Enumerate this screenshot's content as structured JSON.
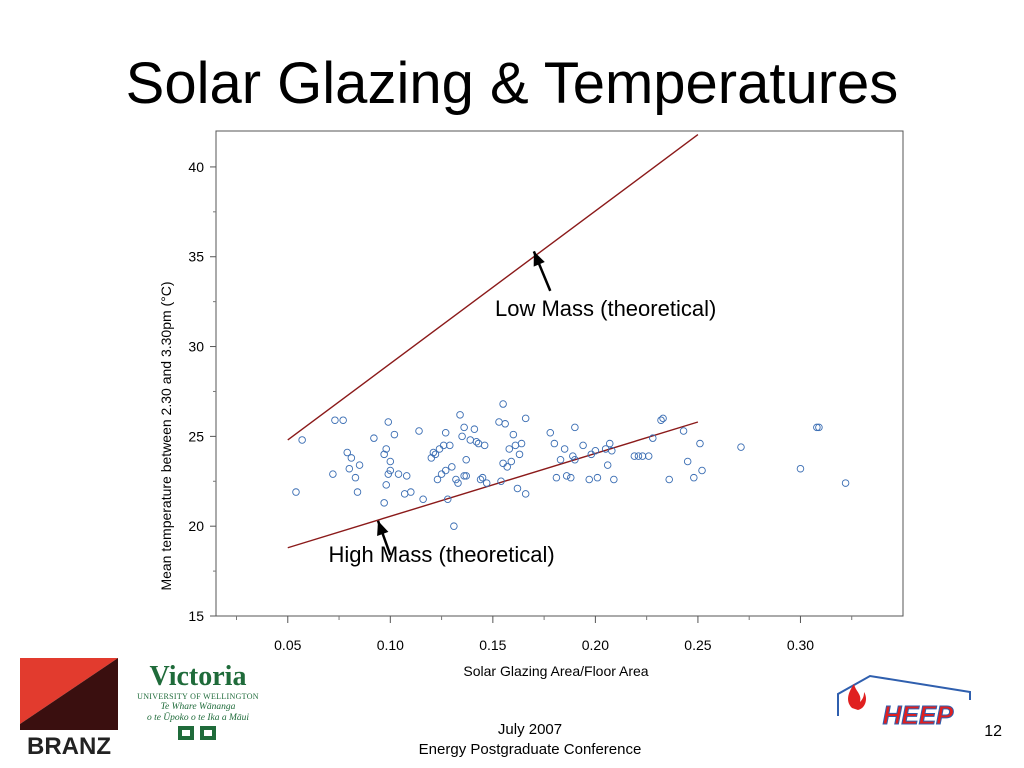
{
  "slide": {
    "title": "Solar Glazing & Temperatures",
    "footer_line1": "July 2007",
    "footer_line2": "Energy Postgraduate Conference",
    "page_number": "12"
  },
  "logos": {
    "branz": "BRANZ",
    "victoria_name": "Victoria",
    "victoria_sub": "UNIVERSITY OF WELLINGTON",
    "victoria_maori_1": "Te Whare Wānanga",
    "victoria_maori_2": "o te Ūpoko o te Ika a Māui",
    "heep": "HEEP",
    "branz_red": "#e23b2e",
    "branz_dark": "#3a0f0f",
    "victoria_green": "#1f6b3a",
    "heep_blue": "#2f5fae",
    "heep_red": "#e02020"
  },
  "chart_data": {
    "type": "scatter",
    "title": "",
    "xlabel": "Solar Glazing Area/Floor Area",
    "ylabel": "Mean temperature between 2.30 and 3.30pm (°C)",
    "xlim": [
      0.015,
      0.35
    ],
    "ylim": [
      15,
      42
    ],
    "x_ticks": [
      "0.05",
      "0.10",
      "0.15",
      "0.20",
      "0.25",
      "0.30"
    ],
    "y_ticks": [
      "15",
      "20",
      "25",
      "30",
      "35",
      "40"
    ],
    "grid": false,
    "point_color": "#3a6db3",
    "line_color": "#8b1a1a",
    "lines": [
      {
        "label": "Low Mass (theoretical)",
        "x": [
          0.05,
          0.25
        ],
        "y": [
          24.8,
          41.8
        ]
      },
      {
        "label": "High Mass (theoretical)",
        "x": [
          0.05,
          0.25
        ],
        "y": [
          18.8,
          25.8
        ]
      }
    ],
    "annotations": [
      {
        "text": "Low Mass (theoretical)",
        "x": 0.205,
        "y": 31.7,
        "arrow_from": [
          0.178,
          33.1
        ],
        "arrow_to": [
          0.17,
          35.3
        ]
      },
      {
        "text": "High Mass (theoretical)",
        "x": 0.125,
        "y": 18.0,
        "arrow_from": [
          0.1,
          18.4
        ],
        "arrow_to": [
          0.094,
          20.3
        ]
      }
    ],
    "series": [
      {
        "points": [
          [
            0.054,
            21.9
          ],
          [
            0.057,
            24.8
          ],
          [
            0.072,
            22.9
          ],
          [
            0.073,
            25.9
          ],
          [
            0.077,
            25.9
          ],
          [
            0.079,
            24.1
          ],
          [
            0.08,
            23.2
          ],
          [
            0.081,
            23.8
          ],
          [
            0.083,
            22.7
          ],
          [
            0.084,
            21.9
          ],
          [
            0.085,
            23.4
          ],
          [
            0.092,
            24.9
          ],
          [
            0.097,
            21.3
          ],
          [
            0.097,
            24.0
          ],
          [
            0.098,
            24.3
          ],
          [
            0.098,
            22.3
          ],
          [
            0.099,
            25.8
          ],
          [
            0.099,
            22.9
          ],
          [
            0.1,
            23.6
          ],
          [
            0.1,
            23.1
          ],
          [
            0.102,
            25.1
          ],
          [
            0.104,
            22.9
          ],
          [
            0.107,
            21.8
          ],
          [
            0.108,
            22.8
          ],
          [
            0.11,
            21.9
          ],
          [
            0.114,
            25.3
          ],
          [
            0.116,
            21.5
          ],
          [
            0.12,
            23.8
          ],
          [
            0.121,
            24.1
          ],
          [
            0.122,
            24.0
          ],
          [
            0.123,
            22.6
          ],
          [
            0.124,
            24.3
          ],
          [
            0.125,
            22.9
          ],
          [
            0.126,
            24.5
          ],
          [
            0.127,
            25.2
          ],
          [
            0.127,
            23.1
          ],
          [
            0.128,
            21.5
          ],
          [
            0.129,
            24.5
          ],
          [
            0.13,
            23.3
          ],
          [
            0.131,
            20.0
          ],
          [
            0.132,
            22.6
          ],
          [
            0.133,
            22.4
          ],
          [
            0.134,
            26.2
          ],
          [
            0.135,
            25.0
          ],
          [
            0.136,
            25.5
          ],
          [
            0.136,
            22.8
          ],
          [
            0.137,
            23.7
          ],
          [
            0.137,
            22.8
          ],
          [
            0.139,
            24.8
          ],
          [
            0.141,
            25.4
          ],
          [
            0.142,
            24.7
          ],
          [
            0.143,
            24.6
          ],
          [
            0.144,
            22.6
          ],
          [
            0.145,
            22.7
          ],
          [
            0.146,
            24.5
          ],
          [
            0.147,
            22.4
          ],
          [
            0.153,
            25.8
          ],
          [
            0.154,
            22.5
          ],
          [
            0.155,
            26.8
          ],
          [
            0.155,
            23.5
          ],
          [
            0.156,
            25.7
          ],
          [
            0.157,
            23.3
          ],
          [
            0.158,
            24.3
          ],
          [
            0.159,
            23.6
          ],
          [
            0.16,
            25.1
          ],
          [
            0.161,
            24.5
          ],
          [
            0.162,
            22.1
          ],
          [
            0.163,
            24.0
          ],
          [
            0.164,
            24.6
          ],
          [
            0.166,
            26.0
          ],
          [
            0.166,
            21.8
          ],
          [
            0.178,
            25.2
          ],
          [
            0.18,
            24.6
          ],
          [
            0.181,
            22.7
          ],
          [
            0.183,
            23.7
          ],
          [
            0.185,
            24.3
          ],
          [
            0.186,
            22.8
          ],
          [
            0.188,
            22.7
          ],
          [
            0.189,
            23.9
          ],
          [
            0.19,
            25.5
          ],
          [
            0.19,
            23.7
          ],
          [
            0.194,
            24.5
          ],
          [
            0.197,
            22.6
          ],
          [
            0.198,
            24.0
          ],
          [
            0.2,
            24.2
          ],
          [
            0.201,
            22.7
          ],
          [
            0.205,
            24.3
          ],
          [
            0.206,
            23.4
          ],
          [
            0.207,
            24.6
          ],
          [
            0.208,
            24.2
          ],
          [
            0.209,
            22.6
          ],
          [
            0.219,
            23.9
          ],
          [
            0.221,
            23.9
          ],
          [
            0.223,
            23.9
          ],
          [
            0.226,
            23.9
          ],
          [
            0.228,
            24.9
          ],
          [
            0.232,
            25.9
          ],
          [
            0.233,
            26.0
          ],
          [
            0.236,
            22.6
          ],
          [
            0.243,
            25.3
          ],
          [
            0.245,
            23.6
          ],
          [
            0.248,
            22.7
          ],
          [
            0.251,
            24.6
          ],
          [
            0.252,
            23.1
          ],
          [
            0.271,
            24.4
          ],
          [
            0.3,
            23.2
          ],
          [
            0.308,
            25.5
          ],
          [
            0.309,
            25.5
          ],
          [
            0.322,
            22.4
          ]
        ]
      }
    ]
  }
}
